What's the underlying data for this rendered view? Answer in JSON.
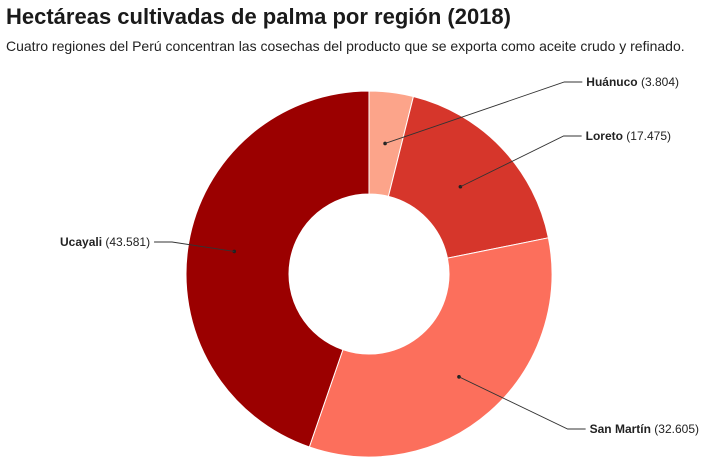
{
  "title": "Hectáreas cultivadas de palma por región (2018)",
  "subtitle": "Cuatro regiones del Perú concentran las cosechas del producto que se exporta como aceite crudo y refinado.",
  "chart_data": {
    "type": "pie",
    "variant": "donut",
    "slices": [
      {
        "name": "Huánuco",
        "value": 3804,
        "display": "3.804",
        "color": "#fca48a"
      },
      {
        "name": "Loreto",
        "value": 17475,
        "display": "17.475",
        "color": "#d6362b"
      },
      {
        "name": "San Martín",
        "value": 32605,
        "display": "32.605",
        "color": "#fc6f5c"
      },
      {
        "name": "Ucayali",
        "value": 43581,
        "display": "43.581",
        "color": "#9b0000"
      }
    ]
  }
}
